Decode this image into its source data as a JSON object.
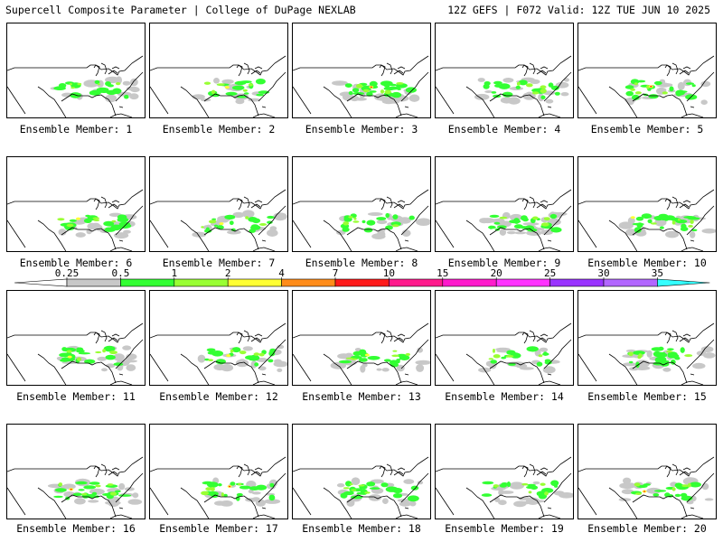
{
  "header": {
    "left": "Supercell Composite Parameter | College of DuPage NEXLAB",
    "right": "12Z GEFS | F072 Valid: 12Z TUE JUN 10 2025"
  },
  "colorbar": {
    "labels": [
      "0.25",
      "0.5",
      "1",
      "2",
      "4",
      "7",
      "10",
      "15",
      "20",
      "25",
      "30",
      "35"
    ],
    "colors": [
      "#c8c8c8",
      "#33ff33",
      "#99ff33",
      "#ffff33",
      "#ff8c1a",
      "#ff1a1a",
      "#ff1a8c",
      "#ff1acc",
      "#ff33ff",
      "#9933ff",
      "#b266ff",
      "#33ffff"
    ]
  },
  "members": [
    {
      "label": "Ensemble Member: 1"
    },
    {
      "label": "Ensemble Member: 2"
    },
    {
      "label": "Ensemble Member: 3"
    },
    {
      "label": "Ensemble Member: 4"
    },
    {
      "label": "Ensemble Member: 5"
    },
    {
      "label": "Ensemble Member: 6"
    },
    {
      "label": "Ensemble Member: 7"
    },
    {
      "label": "Ensemble Member: 8"
    },
    {
      "label": "Ensemble Member: 9"
    },
    {
      "label": "Ensemble Member: 10"
    },
    {
      "label": "Ensemble Member: 11"
    },
    {
      "label": "Ensemble Member: 12"
    },
    {
      "label": "Ensemble Member: 13"
    },
    {
      "label": "Ensemble Member: 14"
    },
    {
      "label": "Ensemble Member: 15"
    },
    {
      "label": "Ensemble Member: 16"
    },
    {
      "label": "Ensemble Member: 17"
    },
    {
      "label": "Ensemble Member: 18"
    },
    {
      "label": "Ensemble Member: 19"
    },
    {
      "label": "Ensemble Member: 20"
    }
  ]
}
